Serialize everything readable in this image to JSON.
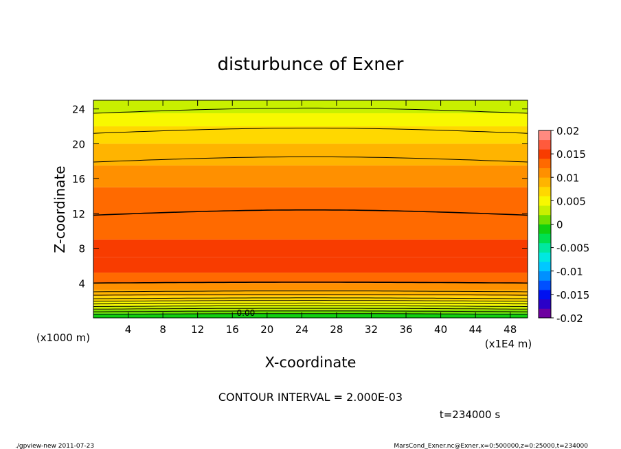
{
  "chart_data": {
    "type": "contour",
    "title": "disturbunce of Exner",
    "xlabel": "X-coordinate",
    "ylabel": "Z-coordinate",
    "x_unit": "(x1E4 m)",
    "y_unit": "(x1000 m)",
    "x_ticks": [
      "4",
      "8",
      "12",
      "16",
      "20",
      "24",
      "28",
      "32",
      "36",
      "40",
      "44",
      "48"
    ],
    "y_ticks": [
      "4",
      "8",
      "12",
      "16",
      "20",
      "24"
    ],
    "xlim": [
      0,
      50
    ],
    "ylim": [
      0,
      25
    ],
    "colorbar": {
      "labels": [
        "0.02",
        "0.015",
        "0.01",
        "0.005",
        "0",
        "-0.005",
        "-0.01",
        "-0.015",
        "-0.02"
      ],
      "levels": [
        -0.02,
        -0.018,
        -0.016,
        -0.014,
        -0.012,
        -0.01,
        -0.008,
        -0.006,
        -0.004,
        -0.002,
        0,
        0.002,
        0.004,
        0.006,
        0.008,
        0.01,
        0.012,
        0.014,
        0.016,
        0.018,
        0.02
      ],
      "colors": [
        "#6e00a0",
        "#2a00c8",
        "#0010f0",
        "#0050ff",
        "#0090ff",
        "#00c8ff",
        "#00e8e0",
        "#00e8a0",
        "#00e050",
        "#10d010",
        "#70e000",
        "#c8f000",
        "#f8f800",
        "#ffd800",
        "#ffb400",
        "#ff9000",
        "#ff6a00",
        "#f83c00",
        "#ff5a3c",
        "#ff8a80"
      ]
    },
    "contour_interval": "2.000E-03",
    "contour_label": "0.00",
    "bands": [
      {
        "z": 0.0,
        "value": -0.002
      },
      {
        "z": 0.5,
        "value": 0.0
      },
      {
        "z": 0.9,
        "value": 0.002
      },
      {
        "z": 1.4,
        "value": 0.004
      },
      {
        "z": 1.9,
        "value": 0.006
      },
      {
        "z": 2.5,
        "value": 0.008
      },
      {
        "z": 3.2,
        "value": 0.01
      },
      {
        "z": 4.0,
        "value": 0.012
      },
      {
        "z": 5.2,
        "value": 0.014
      },
      {
        "z": 7.0,
        "value": 0.014
      },
      {
        "z": 9.0,
        "value": 0.012
      },
      {
        "z": 15.0,
        "value": 0.01
      },
      {
        "z": 17.5,
        "value": 0.008
      },
      {
        "z": 20.0,
        "value": 0.006
      },
      {
        "z": 22.0,
        "value": 0.004
      },
      {
        "z": 23.5,
        "value": 0.002
      }
    ],
    "contours": [
      0.4,
      0.7,
      1.0,
      1.3,
      1.6,
      1.9,
      2.2,
      2.6,
      3.0,
      4.0,
      11.8,
      17.9,
      21.2,
      23.5
    ]
  },
  "footer": {
    "interval_text": "CONTOUR INTERVAL = 2.000E-03",
    "time_text": "t=234000 s",
    "left_note": "./gpview-new  2011-07-23",
    "right_note": "MarsCond_Exner.nc@Exner,x=0:500000,z=0:25000,t=234000"
  }
}
